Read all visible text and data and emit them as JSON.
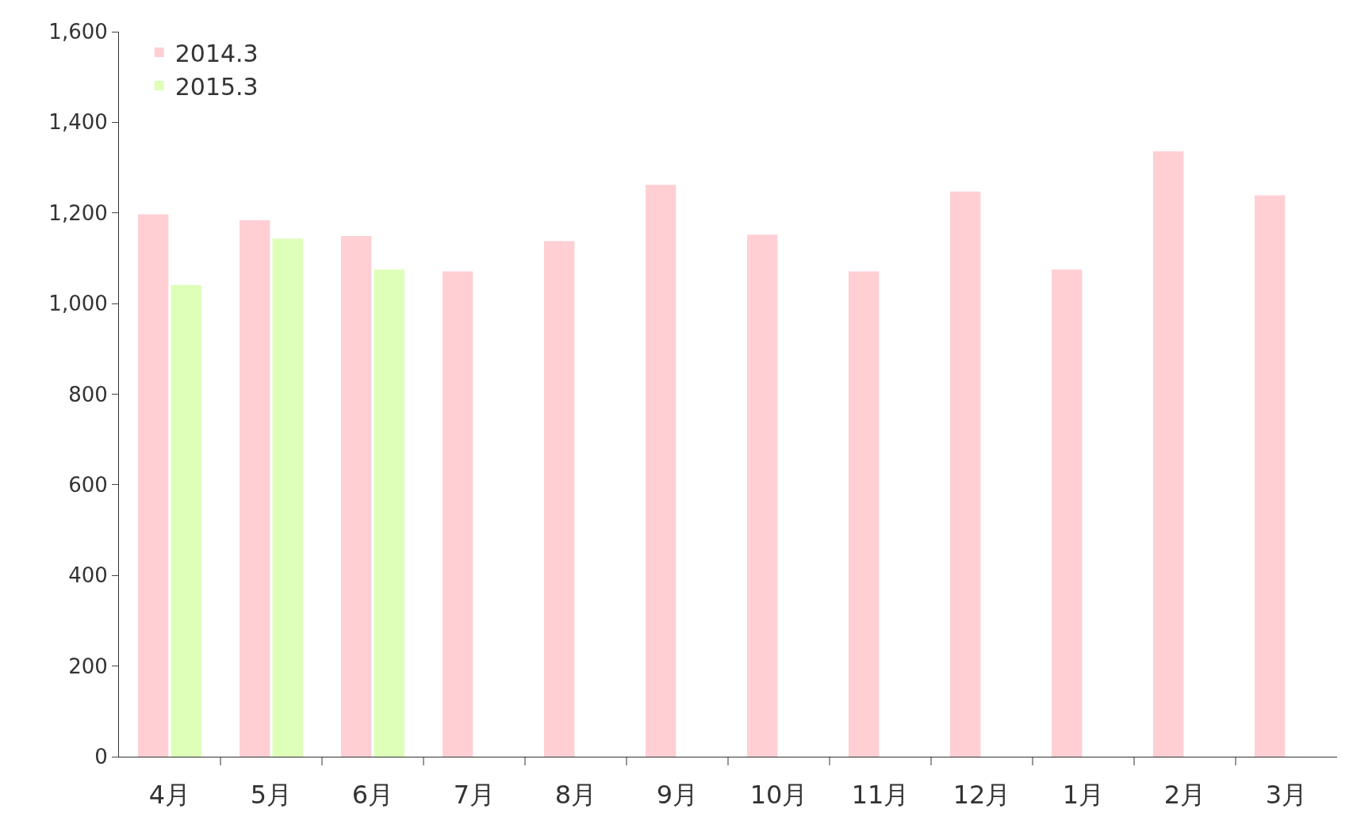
{
  "chart_data": {
    "type": "bar",
    "categories": [
      "4月",
      "5月",
      "6月",
      "7月",
      "8月",
      "9月",
      "10月",
      "11月",
      "12月",
      "1月",
      "2月",
      "3月"
    ],
    "series": [
      {
        "name": "2014.3",
        "color": "#ffcfd4",
        "values": [
          1197,
          1184,
          1149,
          1071,
          1138,
          1262,
          1152,
          1071,
          1247,
          1075,
          1336,
          1239
        ]
      },
      {
        "name": "2015.3",
        "color": "#ddffb8",
        "values": [
          1041,
          1143,
          1075,
          null,
          null,
          null,
          null,
          null,
          null,
          null,
          null,
          null
        ]
      }
    ],
    "ylim": [
      0,
      1600
    ],
    "yticks": [
      {
        "value": 0,
        "label": "0"
      },
      {
        "value": 200,
        "label": "200"
      },
      {
        "value": 400,
        "label": "400"
      },
      {
        "value": 600,
        "label": "600"
      },
      {
        "value": 800,
        "label": "800"
      },
      {
        "value": 1000,
        "label": "1,000"
      },
      {
        "value": 1200,
        "label": "1,200"
      },
      {
        "value": 1400,
        "label": "1,400"
      },
      {
        "value": 1600,
        "label": "1,600"
      }
    ],
    "legend": "top left"
  }
}
